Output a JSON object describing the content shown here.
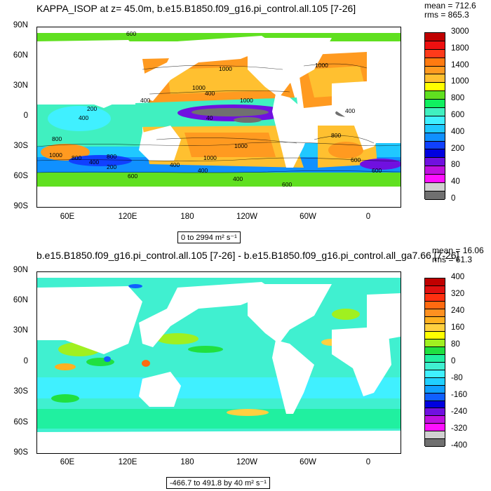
{
  "panel1": {
    "title": "KAPPA_ISOP at z=  45.0m, b.e15.B1850.f09_g16.pi_control.all.105 [7-26]",
    "mean": "mean = 712.6",
    "rms": "rms = 865.3",
    "range": "0 to 2994 m² s⁻¹",
    "colorbar_labels": [
      "3000",
      "1800",
      "1400",
      "1000",
      "800",
      "600",
      "400",
      "200",
      "80",
      "40",
      "0"
    ],
    "contour_labels": [
      "600",
      "1000",
      "400",
      "1000",
      "400",
      "1000",
      "40",
      "400",
      "800",
      "1000",
      "800",
      "400",
      "1000",
      "400",
      "1000",
      "600",
      "400",
      "400",
      "600",
      "200",
      "800",
      "400",
      "600",
      "600",
      "200",
      "1000",
      "800"
    ]
  },
  "panel2": {
    "title": "b.e15.B1850.f09_g16.pi_control.all.105 [7-26] - b.e15.B1850.f09_g16.pi_control.all_ga7.66 [7-26]",
    "mean": "mean = 16.06",
    "rms": "rms = 61.3",
    "range": "-466.7 to 491.8 by 40 m² s⁻¹",
    "colorbar_labels": [
      "400",
      "320",
      "240",
      "160",
      "80",
      "0",
      "-80",
      "-160",
      "-240",
      "-320",
      "-400"
    ]
  },
  "axes": {
    "lat_labels": [
      "90N",
      "60N",
      "30N",
      "0",
      "30S",
      "60S",
      "90S"
    ],
    "lon_labels": [
      "60E",
      "120E",
      "180",
      "120W",
      "60W",
      "0"
    ]
  },
  "colors": {
    "panel1_colorbar": [
      "#c00000",
      "#ee1010",
      "#ff3a1a",
      "#ff7a10",
      "#ff9a20",
      "#ffc030",
      "#ffff00",
      "#60e020",
      "#10f060",
      "#40f0c0",
      "#40f0ff",
      "#20c8ff",
      "#1090ff",
      "#1040ff",
      "#0000e0",
      "#7010e0",
      "#c010e0",
      "#ff10ff",
      "#d0d0d0",
      "#707070"
    ],
    "panel2_colorbar": [
      "#c00000",
      "#e01010",
      "#ff3010",
      "#ff6a10",
      "#ff9020",
      "#ffb020",
      "#ffd040",
      "#ffff00",
      "#a0f020",
      "#20e040",
      "#20f0a0",
      "#40f0d0",
      "#40f0ff",
      "#20d0ff",
      "#10a0ff",
      "#1060ff",
      "#0000e0",
      "#7010e0",
      "#c010e0",
      "#ff10ff",
      "#d0d0d0",
      "#707070"
    ]
  }
}
